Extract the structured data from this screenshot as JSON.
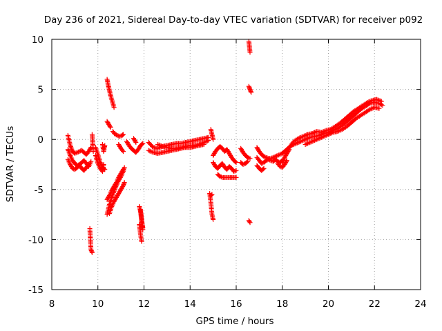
{
  "chart_data": {
    "type": "scatter",
    "title": "Day 236 of 2021, Sidereal Day-to-day VTEC variation (SDTVAR) for receiver p092",
    "xlabel": "GPS time / hours",
    "ylabel": "SDTVAR / TECUs",
    "xlim": [
      8,
      24
    ],
    "ylim": [
      -15,
      10
    ],
    "xticks": [
      8,
      10,
      12,
      14,
      16,
      18,
      20,
      22,
      24
    ],
    "yticks": [
      -15,
      -10,
      -5,
      0,
      5,
      10
    ],
    "xtick_labels": [
      "8",
      "10",
      "12",
      "14",
      "16",
      "18",
      "20",
      "22",
      "24"
    ],
    "ytick_labels": [
      "-15",
      "-10",
      "-5",
      "0",
      "5",
      "10"
    ],
    "grid": true,
    "marker": "plus",
    "color": "#ff0000",
    "series": [
      {
        "name": "seg1",
        "x": [
          8.7,
          8.8,
          8.9,
          9.0,
          9.1,
          9.2,
          9.3,
          9.4,
          9.5,
          9.6,
          9.7
        ],
        "y": [
          0.4,
          -0.6,
          -1.2,
          -1.4,
          -1.3,
          -1.2,
          -1.1,
          -1.3,
          -1.5,
          -1.2,
          -0.8
        ]
      },
      {
        "name": "seg2",
        "x": [
          8.7,
          8.8,
          8.9,
          9.0,
          9.1,
          9.2,
          9.3,
          9.4,
          9.5,
          9.6,
          9.7
        ],
        "y": [
          -1.0,
          -1.6,
          -2.1,
          -2.4,
          -2.6,
          -2.5,
          -2.3,
          -2.1,
          -2.4,
          -2.7,
          -2.2
        ]
      },
      {
        "name": "seg3",
        "x": [
          8.7,
          8.8,
          8.9,
          9.0,
          9.1,
          9.2,
          9.3,
          9.4,
          9.5,
          9.6
        ],
        "y": [
          -2.0,
          -2.5,
          -2.9,
          -3.0,
          -2.8,
          -2.6,
          -2.9,
          -3.1,
          -2.8,
          -2.5
        ]
      },
      {
        "name": "seg4",
        "x": [
          9.75,
          9.8
        ],
        "y": [
          0.5,
          -1.2
        ]
      },
      {
        "name": "seg5",
        "x": [
          9.65,
          9.7,
          9.75
        ],
        "y": [
          -8.9,
          -11.0,
          -11.3
        ]
      },
      {
        "name": "seg6",
        "x": [
          9.9,
          10.0,
          10.1,
          10.2,
          10.3
        ],
        "y": [
          -0.8,
          -1.5,
          -2.3,
          -2.8,
          -3.0
        ]
      },
      {
        "name": "seg7",
        "x": [
          9.9,
          10.0,
          10.1,
          10.2,
          10.25
        ],
        "y": [
          -1.6,
          -2.4,
          -2.9,
          -3.2,
          -2.5
        ]
      },
      {
        "name": "seg8",
        "x": [
          10.2,
          10.25,
          10.3
        ],
        "y": [
          -0.5,
          -1.2,
          -0.6
        ]
      },
      {
        "name": "seg9",
        "x": [
          10.4,
          10.45,
          10.5,
          10.55,
          10.6,
          10.65,
          10.7
        ],
        "y": [
          6.0,
          5.4,
          4.9,
          4.4,
          4.0,
          3.6,
          3.2
        ]
      },
      {
        "name": "seg10",
        "x": [
          10.4,
          10.45,
          10.5,
          10.55
        ],
        "y": [
          1.8,
          1.6,
          1.4,
          1.2
        ]
      },
      {
        "name": "seg11",
        "x": [
          10.65,
          10.75,
          10.85,
          10.95,
          11.05,
          11.1
        ],
        "y": [
          0.8,
          0.5,
          0.4,
          0.3,
          0.4,
          0.5
        ]
      },
      {
        "name": "seg12",
        "x": [
          10.4,
          10.5,
          10.6,
          10.7,
          10.8,
          10.9,
          11.0,
          11.1,
          11.15
        ],
        "y": [
          -7.5,
          -6.5,
          -5.8,
          -5.2,
          -4.6,
          -4.1,
          -3.7,
          -3.2,
          -2.8
        ]
      },
      {
        "name": "seg13",
        "x": [
          10.4,
          10.5,
          10.6,
          10.7,
          10.8,
          10.9,
          11.0,
          11.1
        ],
        "y": [
          -6.0,
          -5.6,
          -5.1,
          -4.7,
          -4.3,
          -3.8,
          -3.4,
          -3.0
        ]
      },
      {
        "name": "seg14",
        "x": [
          10.5,
          10.6,
          10.7,
          10.8,
          10.9,
          11.0,
          11.1,
          11.15
        ],
        "y": [
          -7.4,
          -6.7,
          -6.2,
          -5.8,
          -5.4,
          -5.0,
          -4.6,
          -4.3
        ]
      },
      {
        "name": "seg15",
        "x": [
          11.25,
          11.35,
          11.45,
          11.55,
          11.65,
          11.75,
          11.85,
          11.95
        ],
        "y": [
          -0.2,
          -0.6,
          -0.9,
          -1.1,
          -1.3,
          -1.0,
          -0.6,
          -0.4
        ]
      },
      {
        "name": "seg16",
        "x": [
          10.9,
          11.0,
          11.1
        ],
        "y": [
          -0.5,
          -0.9,
          -1.2
        ]
      },
      {
        "name": "seg17",
        "x": [
          11.55,
          11.6,
          11.65
        ],
        "y": [
          0.1,
          -0.1,
          -0.3
        ]
      },
      {
        "name": "seg18",
        "x": [
          11.8,
          11.85,
          11.9,
          11.95
        ],
        "y": [
          -6.7,
          -7.2,
          -8.2,
          -8.8
        ]
      },
      {
        "name": "seg19",
        "x": [
          11.8,
          11.85,
          11.9
        ],
        "y": [
          -8.5,
          -9.5,
          -10.2
        ]
      },
      {
        "name": "seg20",
        "x": [
          11.85,
          11.9,
          11.95
        ],
        "y": [
          -7.0,
          -8.0,
          -9.0
        ]
      },
      {
        "name": "seg21",
        "x": [
          12.2,
          12.4,
          12.6,
          12.8,
          13.0,
          13.2,
          13.4,
          13.6,
          13.8,
          14.0,
          14.2,
          14.4,
          14.6,
          14.8
        ],
        "y": [
          -0.3,
          -0.8,
          -0.9,
          -0.7,
          -0.6,
          -0.5,
          -0.4,
          -0.4,
          -0.3,
          -0.2,
          -0.1,
          0.0,
          0.1,
          0.2
        ]
      },
      {
        "name": "seg22",
        "x": [
          12.2,
          12.4,
          12.6,
          12.8,
          13.0,
          13.2,
          13.4,
          13.6,
          13.8,
          14.0,
          14.2,
          14.4,
          14.6
        ],
        "y": [
          -1.1,
          -1.3,
          -1.4,
          -1.3,
          -1.2,
          -1.1,
          -1.0,
          -0.9,
          -0.8,
          -0.8,
          -0.7,
          -0.6,
          -0.5
        ]
      },
      {
        "name": "seg23",
        "x": [
          12.6,
          12.8,
          13.0,
          13.2,
          13.4,
          13.6,
          13.8,
          14.0,
          14.2,
          14.4,
          14.6,
          14.8
        ],
        "y": [
          -0.5,
          -0.7,
          -0.8,
          -0.9,
          -0.9,
          -0.8,
          -0.7,
          -0.6,
          -0.6,
          -0.5,
          -0.3,
          -0.1
        ]
      },
      {
        "name": "seg24",
        "x": [
          14.9,
          14.95,
          15.0
        ],
        "y": [
          1.0,
          0.5,
          0.0
        ]
      },
      {
        "name": "seg25",
        "x": [
          15.0,
          15.1,
          15.2,
          15.3,
          15.4,
          15.5,
          15.6,
          15.7,
          15.8,
          15.9,
          16.0
        ],
        "y": [
          -1.6,
          -1.2,
          -0.9,
          -0.7,
          -0.9,
          -1.2,
          -1.0,
          -1.4,
          -1.8,
          -2.1,
          -2.3
        ]
      },
      {
        "name": "seg26",
        "x": [
          15.0,
          15.1,
          15.2,
          15.3,
          15.4,
          15.5,
          15.6,
          15.7,
          15.8,
          15.9,
          16.0
        ],
        "y": [
          -2.3,
          -2.7,
          -2.9,
          -2.6,
          -2.4,
          -2.8,
          -3.0,
          -2.7,
          -2.9,
          -3.2,
          -3.1
        ]
      },
      {
        "name": "seg27",
        "x": [
          15.2,
          15.3,
          15.4,
          15.5,
          15.6,
          15.7,
          15.8,
          15.9,
          16.0
        ],
        "y": [
          -3.5,
          -3.7,
          -3.8,
          -3.8,
          -3.8,
          -3.8,
          -3.8,
          -3.8,
          -3.8
        ]
      },
      {
        "name": "seg28",
        "x": [
          14.85,
          14.9,
          14.95,
          15.0
        ],
        "y": [
          -5.4,
          -6.3,
          -7.5,
          -8.0
        ]
      },
      {
        "name": "seg29",
        "x": [
          14.9,
          14.95
        ],
        "y": [
          -5.6,
          -5.5
        ]
      },
      {
        "name": "seg30",
        "x": [
          16.2,
          16.3,
          16.4,
          16.5,
          16.6
        ],
        "y": [
          -0.9,
          -1.3,
          -1.6,
          -1.8,
          -1.9
        ]
      },
      {
        "name": "seg31",
        "x": [
          16.2,
          16.3,
          16.4,
          16.5
        ],
        "y": [
          -2.3,
          -2.5,
          -2.4,
          -2.2
        ]
      },
      {
        "name": "seg32",
        "x": [
          16.55,
          16.6
        ],
        "y": [
          9.8,
          8.7
        ]
      },
      {
        "name": "seg33",
        "x": [
          16.55,
          16.6,
          16.65
        ],
        "y": [
          5.3,
          5.0,
          4.7
        ]
      },
      {
        "name": "seg34",
        "x": [
          16.55,
          16.6
        ],
        "y": [
          -8.1,
          -8.3
        ]
      },
      {
        "name": "seg35",
        "x": [
          16.9,
          17.0,
          17.1,
          17.2,
          17.3,
          17.4,
          17.5,
          17.6,
          17.7,
          17.8,
          17.9,
          18.0,
          18.1,
          18.2
        ],
        "y": [
          -0.8,
          -1.2,
          -1.5,
          -1.7,
          -1.8,
          -1.9,
          -1.9,
          -1.8,
          -1.7,
          -1.6,
          -1.5,
          -1.4,
          -1.2,
          -1.0
        ]
      },
      {
        "name": "seg36",
        "x": [
          16.9,
          17.0,
          17.1,
          17.2,
          17.3,
          17.4,
          17.5,
          17.6,
          17.7,
          17.8,
          17.9,
          18.0
        ],
        "y": [
          -1.8,
          -2.1,
          -2.4,
          -2.3,
          -2.1,
          -2.0,
          -2.1,
          -2.2,
          -2.0,
          -2.2,
          -2.3,
          -2.1
        ]
      },
      {
        "name": "seg37",
        "x": [
          16.9,
          17.0,
          17.1,
          17.2
        ],
        "y": [
          -2.6,
          -2.9,
          -3.1,
          -2.9
        ]
      },
      {
        "name": "seg38",
        "x": [
          17.8,
          17.9,
          18.0,
          18.1,
          18.2
        ],
        "y": [
          -2.4,
          -2.7,
          -2.8,
          -2.5,
          -2.1
        ]
      },
      {
        "name": "seg39",
        "x": [
          18.2,
          18.4,
          18.6,
          18.8,
          19.0,
          19.2,
          19.4,
          19.6,
          19.8,
          20.0,
          20.2,
          20.4,
          20.6,
          20.8,
          21.0,
          21.2,
          21.4,
          21.6,
          21.8,
          22.0,
          22.2,
          22.35
        ],
        "y": [
          -1.0,
          -0.6,
          -0.4,
          -0.2,
          0.0,
          0.2,
          0.3,
          0.4,
          0.6,
          0.7,
          0.9,
          1.1,
          1.4,
          1.8,
          2.2,
          2.6,
          3.0,
          3.3,
          3.6,
          3.7,
          3.6,
          3.4
        ]
      },
      {
        "name": "seg40",
        "x": [
          18.3,
          18.5,
          18.7,
          18.9,
          19.1,
          19.3,
          19.5,
          19.7,
          19.9,
          20.1,
          20.3,
          20.5,
          20.7,
          20.9,
          21.1,
          21.3,
          21.5,
          21.7,
          21.9,
          22.1,
          22.3
        ],
        "y": [
          -0.8,
          -0.2,
          0.1,
          0.3,
          0.5,
          0.6,
          0.8,
          0.7,
          0.9,
          1.0,
          1.3,
          1.6,
          2.0,
          2.4,
          2.8,
          3.1,
          3.4,
          3.7,
          3.9,
          4.0,
          3.8
        ]
      },
      {
        "name": "seg41",
        "x": [
          19.0,
          19.2,
          19.4,
          19.6,
          19.8,
          20.0,
          20.2,
          20.4,
          20.6,
          20.8,
          21.0,
          21.2,
          21.4,
          21.6,
          21.8,
          22.0,
          22.2
        ],
        "y": [
          -0.5,
          -0.3,
          -0.1,
          0.1,
          0.3,
          0.5,
          0.7,
          0.8,
          1.0,
          1.3,
          1.7,
          2.1,
          2.4,
          2.7,
          3.0,
          3.2,
          3.1
        ]
      },
      {
        "name": "seg42",
        "x": [
          18.0,
          18.1,
          18.2,
          18.3
        ],
        "y": [
          -2.3,
          -1.8,
          -1.4,
          -1.0
        ]
      }
    ]
  }
}
